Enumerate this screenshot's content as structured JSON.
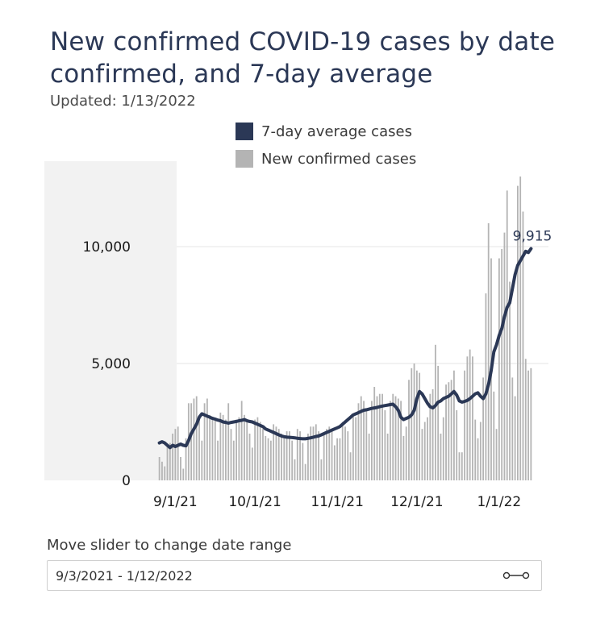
{
  "title": "New confirmed COVID-19 cases by date confirmed, and 7-day average",
  "updated": "Updated: 1/13/2022",
  "legend": {
    "avg_label": "7-day average cases",
    "new_label": "New confirmed cases"
  },
  "colors": {
    "avg_line": "#2b3856",
    "bars": "#b4b4b4",
    "shaded_band": "#f2f2f2",
    "gridline": "#e6e6e6"
  },
  "slider": {
    "label": "Move slider to change date range",
    "range_text": "9/3/2021 - 1/12/2022",
    "icon": "range-slider-icon"
  },
  "chart_data": {
    "type": "bar",
    "title": "New confirmed COVID-19 cases by date confirmed, and 7-day average",
    "x_start": "2021-08-26",
    "x_end": "2022-01-12",
    "x_tick_labels": [
      "9/1/21",
      "10/1/21",
      "11/1/21",
      "12/1/21",
      "1/1/22"
    ],
    "x_tick_day_index": [
      6,
      36,
      67,
      97,
      128
    ],
    "y_tick_labels": [
      "0",
      "5,000",
      "10,000"
    ],
    "y_tick_values": [
      0,
      5000,
      10000
    ],
    "ylim": [
      0,
      13000
    ],
    "grid": true,
    "shaded_region_start_day_index": 0,
    "shaded_region_end_day_index": 7,
    "end_annotation": "9,915",
    "end_annotation_value": 9915,
    "series": [
      {
        "name": "New confirmed cases",
        "kind": "bar",
        "values": [
          1000,
          800,
          600,
          1500,
          1600,
          2000,
          2200,
          2300,
          1000,
          500,
          1800,
          3300,
          3300,
          3500,
          3600,
          2800,
          1700,
          3300,
          3500,
          2800,
          2600,
          2600,
          1700,
          2900,
          2800,
          2600,
          3300,
          2200,
          1700,
          2600,
          2700,
          3400,
          2800,
          2600,
          2000,
          1400,
          2600,
          2700,
          2500,
          2200,
          1900,
          1800,
          1700,
          2400,
          2300,
          2200,
          2000,
          1800,
          2100,
          2100,
          1700,
          900,
          2200,
          2100,
          1600,
          700,
          2000,
          2300,
          2300,
          2400,
          2100,
          900,
          2000,
          2200,
          2300,
          2200,
          1500,
          1800,
          1800,
          2500,
          2300,
          2100,
          1200,
          2800,
          2700,
          3300,
          3600,
          3400,
          3000,
          2000,
          3400,
          4000,
          3600,
          3700,
          3700,
          3000,
          2000,
          3400,
          3700,
          3600,
          3500,
          3400,
          1900,
          2300,
          4300,
          4800,
          5000,
          4700,
          4600,
          2200,
          2500,
          2700,
          3700,
          3900,
          5800,
          4900,
          2000,
          2700,
          4100,
          4200,
          4300,
          4700,
          3000,
          1200,
          1200,
          4700,
          5300,
          5600,
          5300,
          2600,
          1800,
          2500,
          4400,
          8000,
          11000,
          9500,
          3800,
          2200,
          9500,
          9900,
          10600,
          12400,
          8500,
          4400,
          3600,
          12600,
          13000,
          11500,
          5200,
          4700,
          4800
        ]
      },
      {
        "name": "7-day average cases",
        "kind": "line",
        "values": [
          1600,
          1650,
          1600,
          1500,
          1400,
          1500,
          1450,
          1500,
          1550,
          1500,
          1480,
          1700,
          2000,
          2200,
          2400,
          2700,
          2850,
          2800,
          2750,
          2700,
          2650,
          2620,
          2580,
          2550,
          2500,
          2480,
          2450,
          2480,
          2500,
          2520,
          2550,
          2570,
          2600,
          2550,
          2520,
          2500,
          2450,
          2400,
          2350,
          2300,
          2200,
          2150,
          2100,
          2050,
          2000,
          1950,
          1900,
          1870,
          1850,
          1840,
          1830,
          1820,
          1800,
          1790,
          1780,
          1780,
          1800,
          1820,
          1850,
          1880,
          1900,
          1950,
          2000,
          2050,
          2100,
          2150,
          2200,
          2250,
          2300,
          2400,
          2500,
          2600,
          2700,
          2800,
          2850,
          2900,
          2950,
          3000,
          3020,
          3050,
          3080,
          3100,
          3120,
          3150,
          3180,
          3200,
          3220,
          3240,
          3260,
          3150,
          3000,
          2700,
          2600,
          2650,
          2700,
          2800,
          3000,
          3500,
          3800,
          3700,
          3500,
          3300,
          3150,
          3100,
          3200,
          3350,
          3400,
          3500,
          3550,
          3600,
          3700,
          3800,
          3650,
          3400,
          3350,
          3380,
          3420,
          3500,
          3600,
          3700,
          3750,
          3600,
          3500,
          3700,
          4100,
          4700,
          5500,
          5800,
          6200,
          6500,
          7000,
          7400,
          7600,
          8200,
          8800,
          9200,
          9400,
          9600,
          9800,
          9750,
          9915
        ]
      }
    ]
  }
}
